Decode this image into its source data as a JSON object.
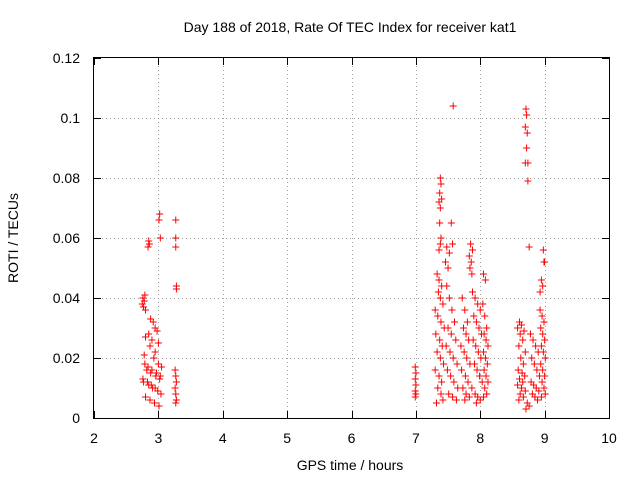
{
  "chart_data": {
    "type": "scatter",
    "title": "Day 188 of 2018, Rate Of TEC Index for receiver kat1",
    "xlabel": "GPS time / hours",
    "ylabel": "ROTI / TECUs",
    "xlim": [
      2,
      10
    ],
    "ylim": [
      0,
      0.12
    ],
    "xticks": [
      2,
      3,
      4,
      5,
      6,
      7,
      8,
      9,
      10
    ],
    "xtick_labels": [
      "2",
      "3",
      "4",
      "5",
      "6",
      "7",
      "8",
      "9",
      "10"
    ],
    "yticks": [
      0,
      0.02,
      0.04,
      0.06,
      0.08,
      0.1,
      0.12
    ],
    "ytick_labels": [
      "0",
      "0.02",
      "0.04",
      "0.06",
      "0.08",
      "0.1",
      "0.12"
    ],
    "grid": true,
    "marker": "+",
    "color": "#ff0000",
    "series": [
      {
        "name": "kat1",
        "points": [
          [
            2.76,
            0.04
          ],
          [
            2.78,
            0.039
          ],
          [
            2.79,
            0.041
          ],
          [
            2.77,
            0.037
          ],
          [
            2.8,
            0.036
          ],
          [
            2.75,
            0.038
          ],
          [
            2.85,
            0.059
          ],
          [
            2.86,
            0.058
          ],
          [
            2.84,
            0.057
          ],
          [
            3.02,
            0.068
          ],
          [
            3.01,
            0.066
          ],
          [
            3.03,
            0.06
          ],
          [
            3.27,
            0.066
          ],
          [
            3.27,
            0.06
          ],
          [
            3.27,
            0.057
          ],
          [
            3.28,
            0.044
          ],
          [
            3.28,
            0.043
          ],
          [
            2.88,
            0.033
          ],
          [
            2.92,
            0.032
          ],
          [
            2.95,
            0.03
          ],
          [
            2.98,
            0.029
          ],
          [
            2.85,
            0.028
          ],
          [
            2.8,
            0.027
          ],
          [
            2.9,
            0.026
          ],
          [
            3.0,
            0.025
          ],
          [
            2.87,
            0.024
          ],
          [
            2.95,
            0.022
          ],
          [
            2.78,
            0.021
          ],
          [
            2.93,
            0.02
          ],
          [
            3.0,
            0.018
          ],
          [
            3.05,
            0.017
          ],
          [
            2.82,
            0.016
          ],
          [
            2.88,
            0.015
          ],
          [
            2.96,
            0.014
          ],
          [
            3.02,
            0.013
          ],
          [
            2.77,
            0.012
          ],
          [
            2.85,
            0.011
          ],
          [
            2.91,
            0.01
          ],
          [
            2.99,
            0.009
          ],
          [
            3.04,
            0.008
          ],
          [
            2.8,
            0.007
          ],
          [
            2.87,
            0.006
          ],
          [
            2.94,
            0.005
          ],
          [
            3.01,
            0.004
          ],
          [
            2.79,
            0.018
          ],
          [
            2.84,
            0.017
          ],
          [
            2.9,
            0.016
          ],
          [
            2.97,
            0.015
          ],
          [
            3.03,
            0.014
          ],
          [
            2.76,
            0.013
          ],
          [
            2.83,
            0.012
          ],
          [
            2.89,
            0.011
          ],
          [
            2.95,
            0.01
          ],
          [
            3.26,
            0.016
          ],
          [
            3.27,
            0.014
          ],
          [
            3.28,
            0.012
          ],
          [
            3.26,
            0.01
          ],
          [
            3.27,
            0.008
          ],
          [
            3.28,
            0.006
          ],
          [
            3.27,
            0.005
          ],
          [
            6.99,
            0.017
          ],
          [
            7.0,
            0.015
          ],
          [
            6.99,
            0.013
          ],
          [
            7.0,
            0.011
          ],
          [
            6.99,
            0.009
          ],
          [
            7.0,
            0.008
          ],
          [
            6.99,
            0.007
          ],
          [
            7.38,
            0.08
          ],
          [
            7.39,
            0.078
          ],
          [
            7.37,
            0.075
          ],
          [
            7.4,
            0.073
          ],
          [
            7.36,
            0.072
          ],
          [
            7.38,
            0.07
          ],
          [
            7.37,
            0.065
          ],
          [
            7.39,
            0.06
          ],
          [
            7.38,
            0.058
          ],
          [
            7.36,
            0.056
          ],
          [
            7.58,
            0.104
          ],
          [
            7.55,
            0.065
          ],
          [
            7.57,
            0.058
          ],
          [
            7.48,
            0.057
          ],
          [
            7.52,
            0.055
          ],
          [
            7.46,
            0.052
          ],
          [
            7.5,
            0.05
          ],
          [
            7.85,
            0.058
          ],
          [
            7.88,
            0.056
          ],
          [
            7.83,
            0.054
          ],
          [
            7.86,
            0.052
          ],
          [
            7.84,
            0.05
          ],
          [
            7.87,
            0.048
          ],
          [
            8.05,
            0.048
          ],
          [
            8.08,
            0.046
          ],
          [
            7.33,
            0.048
          ],
          [
            7.36,
            0.046
          ],
          [
            7.4,
            0.044
          ],
          [
            7.35,
            0.042
          ],
          [
            7.38,
            0.04
          ],
          [
            7.42,
            0.038
          ],
          [
            7.3,
            0.036
          ],
          [
            7.34,
            0.034
          ],
          [
            7.39,
            0.032
          ],
          [
            7.44,
            0.03
          ],
          [
            7.31,
            0.028
          ],
          [
            7.37,
            0.026
          ],
          [
            7.41,
            0.024
          ],
          [
            7.33,
            0.022
          ],
          [
            7.38,
            0.02
          ],
          [
            7.43,
            0.018
          ],
          [
            7.3,
            0.016
          ],
          [
            7.36,
            0.014
          ],
          [
            7.4,
            0.012
          ],
          [
            7.34,
            0.01
          ],
          [
            7.39,
            0.008
          ],
          [
            7.42,
            0.006
          ],
          [
            7.32,
            0.005
          ],
          [
            7.48,
            0.044
          ],
          [
            7.52,
            0.04
          ],
          [
            7.56,
            0.036
          ],
          [
            7.6,
            0.032
          ],
          [
            7.5,
            0.03
          ],
          [
            7.55,
            0.028
          ],
          [
            7.62,
            0.026
          ],
          [
            7.47,
            0.024
          ],
          [
            7.53,
            0.022
          ],
          [
            7.58,
            0.02
          ],
          [
            7.64,
            0.018
          ],
          [
            7.49,
            0.016
          ],
          [
            7.54,
            0.014
          ],
          [
            7.59,
            0.012
          ],
          [
            7.65,
            0.01
          ],
          [
            7.51,
            0.008
          ],
          [
            7.57,
            0.007
          ],
          [
            7.63,
            0.006
          ],
          [
            7.72,
            0.04
          ],
          [
            7.76,
            0.036
          ],
          [
            7.8,
            0.032
          ],
          [
            7.74,
            0.03
          ],
          [
            7.78,
            0.028
          ],
          [
            7.82,
            0.026
          ],
          [
            7.7,
            0.024
          ],
          [
            7.75,
            0.022
          ],
          [
            7.79,
            0.02
          ],
          [
            7.84,
            0.018
          ],
          [
            7.71,
            0.016
          ],
          [
            7.77,
            0.014
          ],
          [
            7.81,
            0.012
          ],
          [
            7.73,
            0.01
          ],
          [
            7.78,
            0.008
          ],
          [
            7.83,
            0.007
          ],
          [
            7.76,
            0.006
          ],
          [
            7.88,
            0.042
          ],
          [
            7.92,
            0.04
          ],
          [
            7.96,
            0.038
          ],
          [
            8.0,
            0.036
          ],
          [
            7.9,
            0.034
          ],
          [
            7.94,
            0.032
          ],
          [
            7.98,
            0.03
          ],
          [
            8.02,
            0.028
          ],
          [
            7.89,
            0.026
          ],
          [
            7.93,
            0.024
          ],
          [
            7.97,
            0.022
          ],
          [
            8.01,
            0.02
          ],
          [
            7.91,
            0.018
          ],
          [
            7.95,
            0.016
          ],
          [
            7.99,
            0.014
          ],
          [
            8.03,
            0.012
          ],
          [
            7.87,
            0.01
          ],
          [
            7.92,
            0.008
          ],
          [
            7.96,
            0.007
          ],
          [
            8.0,
            0.006
          ],
          [
            7.94,
            0.005
          ],
          [
            8.04,
            0.038
          ],
          [
            8.07,
            0.034
          ],
          [
            8.1,
            0.03
          ],
          [
            8.06,
            0.028
          ],
          [
            8.09,
            0.026
          ],
          [
            8.12,
            0.024
          ],
          [
            8.05,
            0.022
          ],
          [
            8.08,
            0.02
          ],
          [
            8.11,
            0.018
          ],
          [
            8.06,
            0.016
          ],
          [
            8.09,
            0.014
          ],
          [
            8.12,
            0.012
          ],
          [
            8.07,
            0.01
          ],
          [
            8.1,
            0.008
          ],
          [
            8.05,
            0.007
          ],
          [
            8.71,
            0.103
          ],
          [
            8.72,
            0.101
          ],
          [
            8.7,
            0.097
          ],
          [
            8.73,
            0.095
          ],
          [
            8.72,
            0.09
          ],
          [
            8.7,
            0.085
          ],
          [
            8.74,
            0.085
          ],
          [
            8.74,
            0.079
          ],
          [
            8.76,
            0.057
          ],
          [
            8.98,
            0.056
          ],
          [
            8.99,
            0.052
          ],
          [
            9.0,
            0.052
          ],
          [
            8.95,
            0.046
          ],
          [
            8.97,
            0.044
          ],
          [
            8.93,
            0.042
          ],
          [
            8.61,
            0.032
          ],
          [
            8.64,
            0.031
          ],
          [
            8.58,
            0.03
          ],
          [
            8.68,
            0.029
          ],
          [
            8.62,
            0.028
          ],
          [
            8.66,
            0.026
          ],
          [
            8.6,
            0.024
          ],
          [
            8.7,
            0.022
          ],
          [
            8.63,
            0.02
          ],
          [
            8.67,
            0.018
          ],
          [
            8.59,
            0.016
          ],
          [
            8.65,
            0.015
          ],
          [
            8.69,
            0.014
          ],
          [
            8.61,
            0.013
          ],
          [
            8.66,
            0.012
          ],
          [
            8.58,
            0.011
          ],
          [
            8.64,
            0.01
          ],
          [
            8.7,
            0.009
          ],
          [
            8.62,
            0.008
          ],
          [
            8.67,
            0.007
          ],
          [
            8.6,
            0.006
          ],
          [
            8.73,
            0.005
          ],
          [
            8.76,
            0.004
          ],
          [
            8.71,
            0.003
          ],
          [
            8.78,
            0.028
          ],
          [
            8.82,
            0.026
          ],
          [
            8.86,
            0.024
          ],
          [
            8.9,
            0.022
          ],
          [
            8.8,
            0.02
          ],
          [
            8.84,
            0.018
          ],
          [
            8.88,
            0.016
          ],
          [
            8.92,
            0.014
          ],
          [
            8.79,
            0.012
          ],
          [
            8.83,
            0.011
          ],
          [
            8.87,
            0.01
          ],
          [
            8.91,
            0.009
          ],
          [
            8.81,
            0.008
          ],
          [
            8.85,
            0.007
          ],
          [
            8.89,
            0.006
          ],
          [
            8.93,
            0.036
          ],
          [
            8.96,
            0.034
          ],
          [
            8.99,
            0.032
          ],
          [
            8.94,
            0.03
          ],
          [
            8.97,
            0.028
          ],
          [
            9.0,
            0.026
          ],
          [
            8.95,
            0.024
          ],
          [
            8.98,
            0.022
          ],
          [
            9.01,
            0.02
          ],
          [
            8.94,
            0.018
          ],
          [
            8.97,
            0.016
          ],
          [
            9.0,
            0.014
          ],
          [
            8.96,
            0.012
          ],
          [
            8.99,
            0.01
          ],
          [
            9.01,
            0.008
          ],
          [
            8.95,
            0.007
          ]
        ]
      }
    ]
  }
}
